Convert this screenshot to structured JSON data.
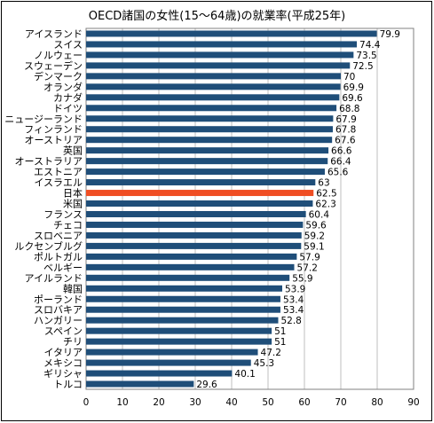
{
  "chart_data": {
    "type": "bar",
    "orientation": "horizontal",
    "title": "OECD諸国の女性(15～64歳)の就業率(平成25年)",
    "xlabel": "",
    "ylabel": "",
    "xlim": [
      0,
      90
    ],
    "xticks": [
      0,
      10,
      20,
      30,
      40,
      50,
      60,
      70,
      80,
      90
    ],
    "grid": true,
    "bar_color": "#1f4e79",
    "highlight_color": "#f04e23",
    "highlight_category": "日本",
    "categories": [
      "アイスランド",
      "スイス",
      "ノルウェー",
      "スウェーデン",
      "デンマーク",
      "オランダ",
      "カナダ",
      "ドイツ",
      "ニュージーランド",
      "フィンランド",
      "オーストリア",
      "英国",
      "オーストラリア",
      "エストニア",
      "イスラエル",
      "日本",
      "米国",
      "フランス",
      "チェコ",
      "スロベニア",
      "ルクセンブルグ",
      "ポルトガル",
      "ベルギー",
      "アイルランド",
      "韓国",
      "ポーランド",
      "スロバキア",
      "ハンガリー",
      "スペイン",
      "チリ",
      "イタリア",
      "メキシコ",
      "ギリシャ",
      "トルコ"
    ],
    "values": [
      79.9,
      74.4,
      73.5,
      72.5,
      70,
      69.9,
      69.6,
      68.8,
      67.9,
      67.8,
      67.6,
      66.6,
      66.4,
      65.6,
      63,
      62.5,
      62.3,
      60.4,
      59.6,
      59.2,
      59.1,
      57.9,
      57.2,
      55.9,
      53.9,
      53.4,
      53.4,
      52.8,
      51,
      51,
      47.2,
      45.3,
      40.1,
      29.6
    ],
    "value_labels": [
      "79.9",
      "74.4",
      "73.5",
      "72.5",
      "70",
      "69.9",
      "69.6",
      "68.8",
      "67.9",
      "67.8",
      "67.6",
      "66.6",
      "66.4",
      "65.6",
      "63",
      "62.5",
      "62.3",
      "60.4",
      "59.6",
      "59.2",
      "59.1",
      "57.9",
      "57.2",
      "55.9",
      "53.9",
      "53.4",
      "53.4",
      "52.8",
      "51",
      "51",
      "47.2",
      "45.3",
      "40.1",
      "29.6"
    ]
  }
}
